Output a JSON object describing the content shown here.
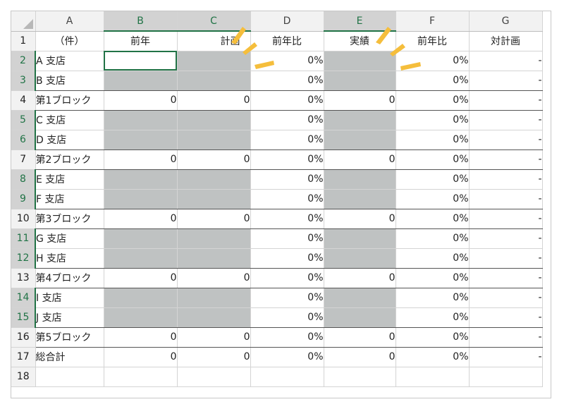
{
  "columns": [
    "A",
    "B",
    "C",
    "D",
    "E",
    "F",
    "G"
  ],
  "selected_columns": [
    "B",
    "C",
    "E"
  ],
  "header_row": {
    "row": "1",
    "a": "（件）",
    "b": "前年",
    "c": "計画",
    "d": "前年比",
    "e": "実績",
    "f": "前年比",
    "g": "対計画"
  },
  "rows": [
    {
      "row": "2",
      "label": "A 支店",
      "d": "0%",
      "f": "0%",
      "g": "-"
    },
    {
      "row": "3",
      "label": "B 支店",
      "d": "0%",
      "f": "0%",
      "g": "-"
    },
    {
      "row": "4",
      "label": "第1ブロック",
      "b": "0",
      "c": "0",
      "d": "0%",
      "e": "0",
      "f": "0%",
      "g": "-"
    },
    {
      "row": "5",
      "label": "C 支店",
      "d": "0%",
      "f": "0%",
      "g": "-"
    },
    {
      "row": "6",
      "label": "D 支店",
      "d": "0%",
      "f": "0%",
      "g": "-"
    },
    {
      "row": "7",
      "label": "第2ブロック",
      "b": "0",
      "c": "0",
      "d": "0%",
      "e": "0",
      "f": "0%",
      "g": "-"
    },
    {
      "row": "8",
      "label": "E 支店",
      "d": "0%",
      "f": "0%",
      "g": "-"
    },
    {
      "row": "9",
      "label": "F 支店",
      "d": "0%",
      "f": "0%",
      "g": "-"
    },
    {
      "row": "10",
      "label": "第3ブロック",
      "b": "0",
      "c": "0",
      "d": "0%",
      "e": "0",
      "f": "0%",
      "g": "-"
    },
    {
      "row": "11",
      "label": "G 支店",
      "d": "0%",
      "f": "0%",
      "g": "-"
    },
    {
      "row": "12",
      "label": "H 支店",
      "d": "0%",
      "f": "0%",
      "g": "-"
    },
    {
      "row": "13",
      "label": "第4ブロック",
      "b": "0",
      "c": "0",
      "d": "0%",
      "e": "0",
      "f": "0%",
      "g": "-"
    },
    {
      "row": "14",
      "label": "I 支店",
      "d": "0%",
      "f": "0%",
      "g": "-"
    },
    {
      "row": "15",
      "label": "J 支店",
      "d": "0%",
      "f": "0%",
      "g": "-"
    },
    {
      "row": "16",
      "label": "第5ブロック",
      "b": "0",
      "c": "0",
      "d": "0%",
      "e": "0",
      "f": "0%",
      "g": "-"
    },
    {
      "row": "17",
      "label": "総合計",
      "b": "0",
      "c": "0",
      "d": "0%",
      "e": "0",
      "f": "0%",
      "g": "-"
    },
    {
      "row": "18",
      "label": ""
    }
  ],
  "highlight_color": "#bfc2c2",
  "annotation_color": "#f5be3c"
}
